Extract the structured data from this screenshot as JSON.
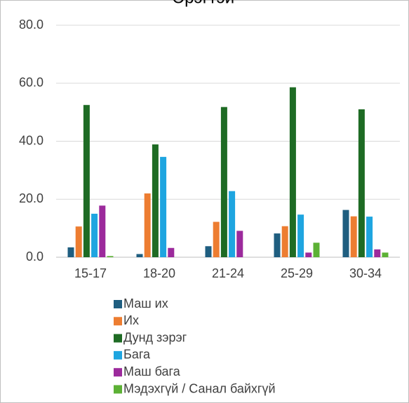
{
  "chart_data": {
    "type": "bar",
    "title": "Эрэгтэй",
    "categories": [
      "15-17",
      "18-20",
      "21-24",
      "25-29",
      "30-34"
    ],
    "series": [
      {
        "name": "Маш их",
        "color": "#1f5e80",
        "values": [
          3.4,
          1.1,
          3.8,
          8.2,
          16.3
        ]
      },
      {
        "name": "Их",
        "color": "#ed7d31",
        "values": [
          10.6,
          22.0,
          12.2,
          10.7,
          14.1
        ]
      },
      {
        "name": "Дунд зэрэг",
        "color": "#1e6b24",
        "values": [
          52.5,
          38.9,
          51.8,
          58.6,
          51.0
        ]
      },
      {
        "name": "Бага",
        "color": "#1ea5e0",
        "values": [
          15.0,
          34.6,
          22.8,
          14.7,
          14.0
        ]
      },
      {
        "name": "Маш бага",
        "color": "#9c2a9c",
        "values": [
          17.8,
          3.2,
          9.1,
          1.6,
          2.7
        ]
      },
      {
        "name": "Мэдэхгүй / Санал байхгүй",
        "color": "#5cb135",
        "values": [
          0.4,
          0,
          0,
          5.0,
          1.6
        ]
      }
    ],
    "ylim": [
      0,
      80
    ],
    "yticks": [
      {
        "value": 0,
        "label": "0.0"
      },
      {
        "value": 20,
        "label": "20.0"
      },
      {
        "value": 40,
        "label": "40.0"
      },
      {
        "value": 60,
        "label": "60.0"
      },
      {
        "value": 80,
        "label": "80.0"
      }
    ],
    "grid": true,
    "legend": "bottom"
  }
}
